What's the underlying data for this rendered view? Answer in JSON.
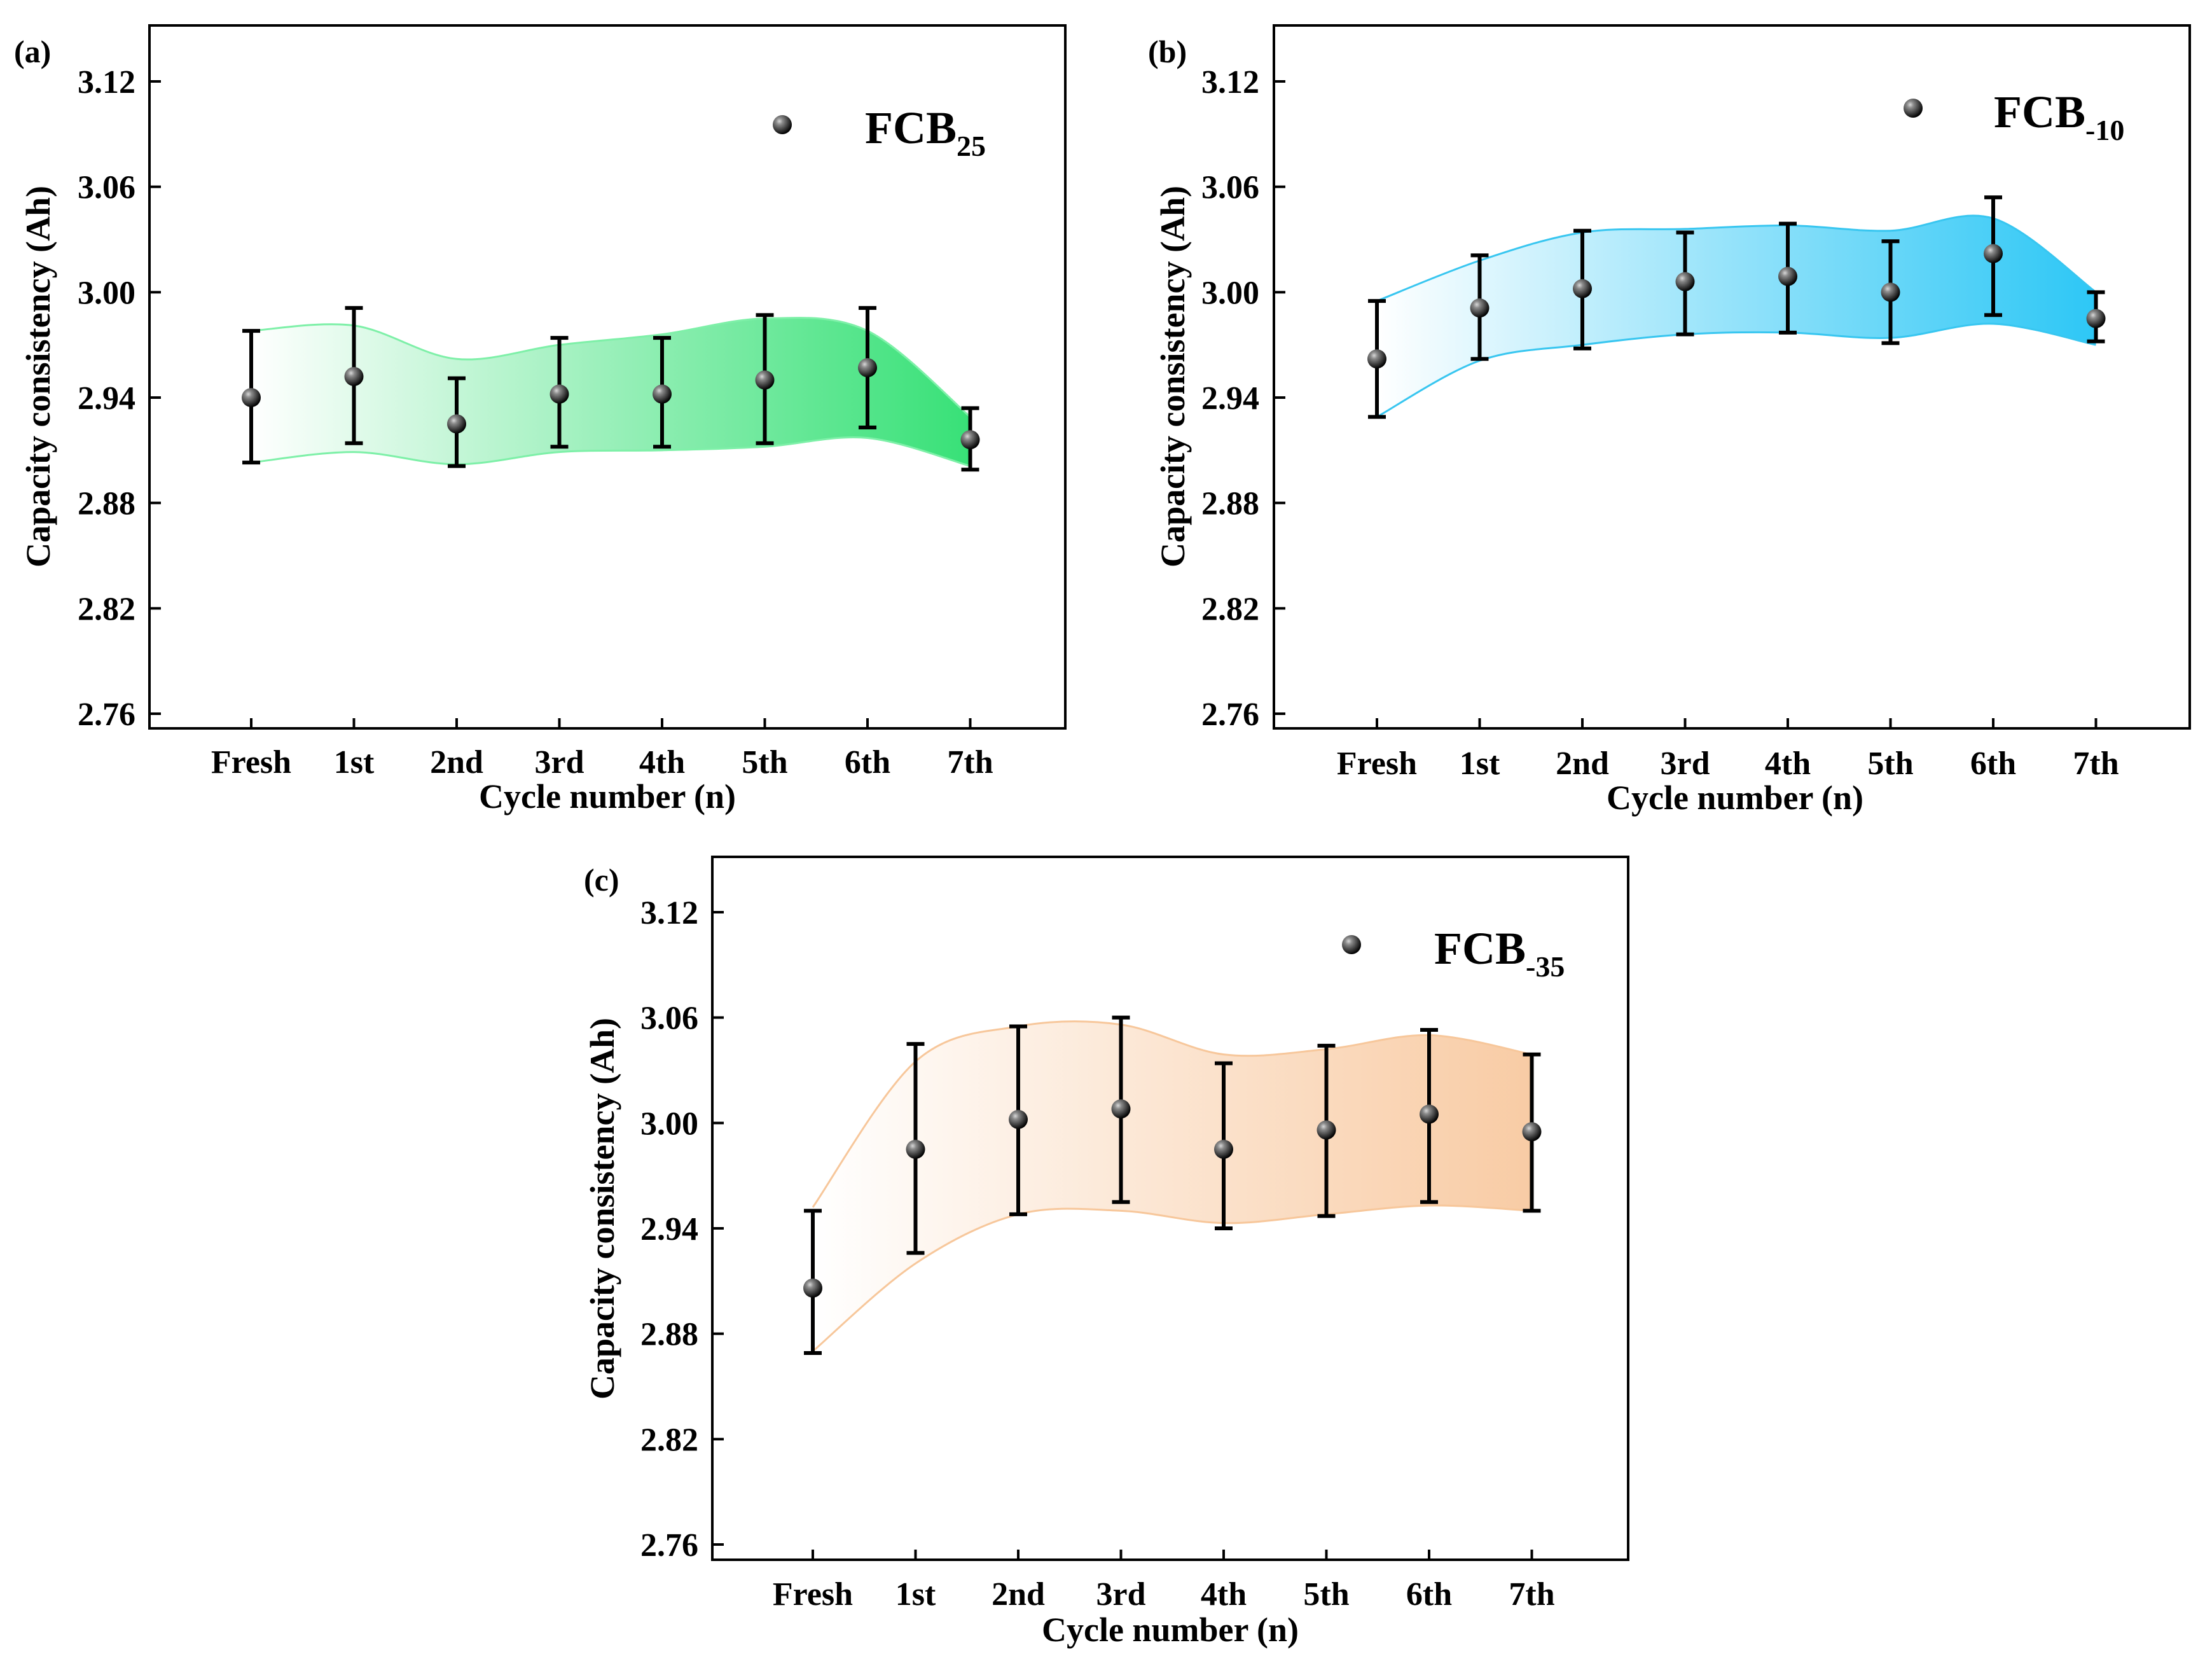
{
  "figure": {
    "colors": {
      "axis": "#000000",
      "marker_light": "#9a9a9a",
      "marker_dark": "#000000"
    }
  },
  "chart_data": [
    {
      "type": "scatter",
      "panel_label": "(a)",
      "legend": {
        "main": "FCB",
        "sub": "25"
      },
      "categories": [
        "Fresh",
        "1st",
        "2nd",
        "3rd",
        "4th",
        "5th",
        "6th",
        "7th"
      ],
      "xlabel": "Cycle number (n)",
      "ylabel": "Capacity consistency (Ah)",
      "ylim": [
        2.75,
        3.15
      ],
      "yticks": [
        "2.76",
        "2.82",
        "2.88",
        "2.94",
        "3.00",
        "3.06",
        "3.12"
      ],
      "series": [
        {
          "name": "FCB25",
          "values": [
            2.94,
            2.952,
            2.925,
            2.942,
            2.942,
            2.95,
            2.957,
            2.916
          ],
          "lower": [
            2.903,
            2.914,
            2.901,
            2.912,
            2.912,
            2.914,
            2.923,
            2.899
          ],
          "upper": [
            2.978,
            2.991,
            2.951,
            2.974,
            2.974,
            2.987,
            2.991,
            2.934
          ]
        }
      ],
      "band": {
        "upper": [
          2.978,
          2.981,
          2.962,
          2.97,
          2.976,
          2.985,
          2.978,
          2.929
        ],
        "lower": [
          2.903,
          2.909,
          2.902,
          2.909,
          2.91,
          2.912,
          2.917,
          2.901
        ]
      },
      "band_colors": [
        "#ffffff",
        "#2ddf70"
      ],
      "band_stroke": "#7ef0a8"
    },
    {
      "type": "scatter",
      "panel_label": "(b)",
      "legend": {
        "main": "FCB",
        "sub": "-10"
      },
      "categories": [
        "Fresh",
        "1st",
        "2nd",
        "3rd",
        "4th",
        "5th",
        "6th",
        "7th"
      ],
      "xlabel": "Cycle number (n)",
      "ylabel": "Capacity consistency (Ah)",
      "ylim": [
        2.75,
        3.15
      ],
      "yticks": [
        "2.76",
        "2.82",
        "2.88",
        "2.94",
        "3.00",
        "3.06",
        "3.12"
      ],
      "series": [
        {
          "name": "FCB-10",
          "values": [
            2.962,
            2.991,
            3.002,
            3.006,
            3.009,
            3.0,
            3.022,
            2.985
          ],
          "lower": [
            2.929,
            2.962,
            2.968,
            2.976,
            2.977,
            2.971,
            2.987,
            2.972
          ],
          "upper": [
            2.995,
            3.021,
            3.035,
            3.034,
            3.039,
            3.029,
            3.054,
            3.0
          ]
        }
      ],
      "band": {
        "upper": [
          2.995,
          3.018,
          3.034,
          3.036,
          3.038,
          3.035,
          3.042,
          3.0
        ],
        "lower": [
          2.929,
          2.961,
          2.97,
          2.976,
          2.977,
          2.974,
          2.982,
          2.97
        ]
      },
      "band_colors": [
        "#ffffff",
        "#22c4f5"
      ],
      "band_stroke": "#38c6f0"
    },
    {
      "type": "scatter",
      "panel_label": "(c)",
      "legend": {
        "main": "FCB",
        "sub": "-35"
      },
      "categories": [
        "Fresh",
        "1st",
        "2nd",
        "3rd",
        "4th",
        "5th",
        "6th",
        "7th"
      ],
      "xlabel": "Cycle number (n)",
      "ylabel": "Capacity consistency (Ah)",
      "ylim": [
        2.75,
        3.15
      ],
      "yticks": [
        "2.76",
        "2.82",
        "2.88",
        "2.94",
        "3.00",
        "3.06",
        "3.12"
      ],
      "series": [
        {
          "name": "FCB-35",
          "values": [
            2.906,
            2.985,
            3.002,
            3.008,
            2.985,
            2.996,
            3.005,
            2.995
          ],
          "lower": [
            2.869,
            2.926,
            2.948,
            2.955,
            2.94,
            2.947,
            2.955,
            2.95
          ],
          "upper": [
            2.95,
            3.045,
            3.055,
            3.06,
            3.034,
            3.044,
            3.053,
            3.039
          ]
        }
      ],
      "band": {
        "upper": [
          2.952,
          3.035,
          3.055,
          3.056,
          3.039,
          3.042,
          3.05,
          3.039
        ],
        "lower": [
          2.87,
          2.92,
          2.948,
          2.95,
          2.943,
          2.948,
          2.953,
          2.95
        ]
      },
      "band_colors": [
        "#ffffff",
        "#f8c9a0"
      ],
      "band_stroke": "#f7c79b"
    }
  ]
}
